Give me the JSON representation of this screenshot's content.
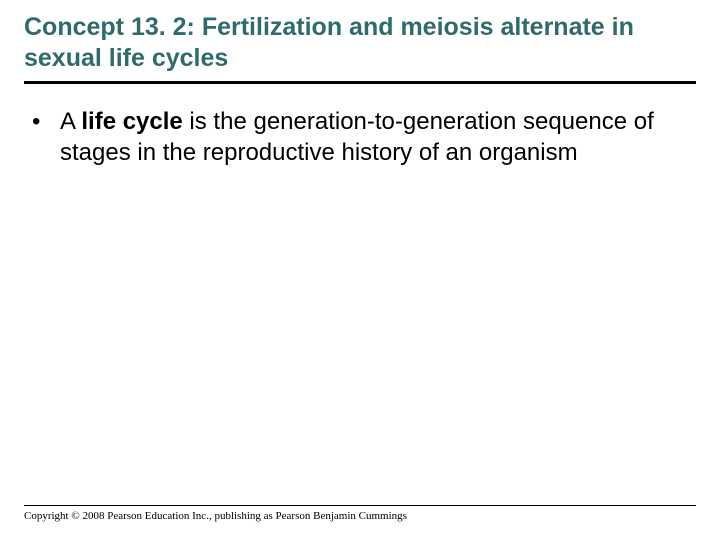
{
  "title": "Concept 13. 2: Fertilization and meiosis alternate in sexual life cycles",
  "title_color": "#2f6b6b",
  "title_fontsize": 25,
  "rule_color": "#000000",
  "bullet": {
    "marker": "•",
    "prefix": "A ",
    "bold_term": "life cycle",
    "rest": " is the generation-to-generation sequence of stages in the reproductive history of an organism"
  },
  "body_fontsize": 24,
  "copyright": "Copyright © 2008 Pearson Education Inc., publishing as Pearson Benjamin Cummings",
  "background_color": "#ffffff"
}
